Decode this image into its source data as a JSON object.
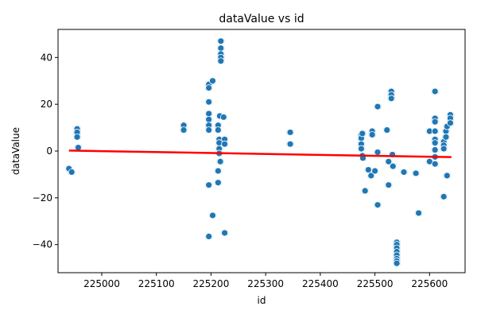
{
  "chart_data": {
    "type": "scatter",
    "title": "dataValue vs id",
    "xlabel": "id",
    "ylabel": "dataValue",
    "xlim": [
      224920,
      225665
    ],
    "ylim": [
      -52,
      52
    ],
    "xticks": [
      225000,
      225100,
      225200,
      225300,
      225400,
      225500,
      225600
    ],
    "xtick_labels": [
      "225000",
      "225100",
      "225200",
      "225300",
      "225400",
      "225500",
      "225600"
    ],
    "yticks": [
      -40,
      -20,
      0,
      20,
      40
    ],
    "ytick_labels": [
      "−40",
      "−20",
      "0",
      "20",
      "40"
    ],
    "grid": false,
    "colors": {
      "points": "#1f77b4",
      "trend": "#ff0000",
      "shadow": "#c6dbef"
    },
    "series": [
      {
        "values": [
          {
            "x": 224940,
            "y": -7.5
          },
          {
            "x": 224945,
            "y": -9
          },
          {
            "x": 224955,
            "y": 9.5
          },
          {
            "x": 224955,
            "y": 8
          },
          {
            "x": 224955,
            "y": 6
          },
          {
            "x": 224957,
            "y": 1.5
          },
          {
            "x": 225150,
            "y": 11
          },
          {
            "x": 225150,
            "y": 9
          },
          {
            "x": 225196,
            "y": 28.5
          },
          {
            "x": 225196,
            "y": 27
          },
          {
            "x": 225196,
            "y": 21
          },
          {
            "x": 225196,
            "y": 16
          },
          {
            "x": 225196,
            "y": 13.5
          },
          {
            "x": 225196,
            "y": 11
          },
          {
            "x": 225196,
            "y": 9
          },
          {
            "x": 225196,
            "y": -14.5
          },
          {
            "x": 225196,
            "y": -36.5
          },
          {
            "x": 225203,
            "y": 30
          },
          {
            "x": 225203,
            "y": -27.5
          },
          {
            "x": 225213,
            "y": 11
          },
          {
            "x": 225213,
            "y": 9
          },
          {
            "x": 225213,
            "y": -8.5
          },
          {
            "x": 225213,
            "y": -13.5
          },
          {
            "x": 225215,
            "y": 5
          },
          {
            "x": 225215,
            "y": 3.5
          },
          {
            "x": 225215,
            "y": 1
          },
          {
            "x": 225215,
            "y": -1
          },
          {
            "x": 225216,
            "y": 15
          },
          {
            "x": 225217,
            "y": -4.5
          },
          {
            "x": 225218,
            "y": 47
          },
          {
            "x": 225218,
            "y": 44
          },
          {
            "x": 225218,
            "y": 41.5
          },
          {
            "x": 225218,
            "y": 40
          },
          {
            "x": 225218,
            "y": 38.5
          },
          {
            "x": 225223,
            "y": 14.5
          },
          {
            "x": 225225,
            "y": 5
          },
          {
            "x": 225225,
            "y": 3
          },
          {
            "x": 225225,
            "y": -35
          },
          {
            "x": 225345,
            "y": 8
          },
          {
            "x": 225345,
            "y": 3
          },
          {
            "x": 225475,
            "y": 7
          },
          {
            "x": 225475,
            "y": 5.5
          },
          {
            "x": 225475,
            "y": 3
          },
          {
            "x": 225475,
            "y": 1
          },
          {
            "x": 225477,
            "y": 7.5
          },
          {
            "x": 225477,
            "y": -2
          },
          {
            "x": 225478,
            "y": -3
          },
          {
            "x": 225482,
            "y": -17
          },
          {
            "x": 225488,
            "y": -8
          },
          {
            "x": 225493,
            "y": -10.5
          },
          {
            "x": 225495,
            "y": 8.5
          },
          {
            "x": 225495,
            "y": 7
          },
          {
            "x": 225500,
            "y": -8.5
          },
          {
            "x": 225505,
            "y": 19
          },
          {
            "x": 225505,
            "y": -0.5
          },
          {
            "x": 225505,
            "y": -23
          },
          {
            "x": 225522,
            "y": 9
          },
          {
            "x": 225525,
            "y": -4.5
          },
          {
            "x": 225525,
            "y": -14.5
          },
          {
            "x": 225530,
            "y": 25.5
          },
          {
            "x": 225530,
            "y": 24
          },
          {
            "x": 225530,
            "y": 22.5
          },
          {
            "x": 225532,
            "y": -1.5
          },
          {
            "x": 225533,
            "y": -6.5
          },
          {
            "x": 225540,
            "y": -39
          },
          {
            "x": 225540,
            "y": -40
          },
          {
            "x": 225540,
            "y": -41.5
          },
          {
            "x": 225540,
            "y": -43
          },
          {
            "x": 225540,
            "y": -44.5
          },
          {
            "x": 225540,
            "y": -46
          },
          {
            "x": 225540,
            "y": -47
          },
          {
            "x": 225540,
            "y": -48
          },
          {
            "x": 225553,
            "y": -9
          },
          {
            "x": 225575,
            "y": -9.5
          },
          {
            "x": 225580,
            "y": -26.5
          },
          {
            "x": 225600,
            "y": 8.5
          },
          {
            "x": 225600,
            "y": -4.5
          },
          {
            "x": 225610,
            "y": 25.5
          },
          {
            "x": 225610,
            "y": 14
          },
          {
            "x": 225610,
            "y": 12.5
          },
          {
            "x": 225610,
            "y": 8.5
          },
          {
            "x": 225610,
            "y": 5
          },
          {
            "x": 225610,
            "y": 3.5
          },
          {
            "x": 225610,
            "y": 0.5
          },
          {
            "x": 225610,
            "y": -2.5
          },
          {
            "x": 225610,
            "y": -5.5
          },
          {
            "x": 225626,
            "y": 4
          },
          {
            "x": 225626,
            "y": 2.5
          },
          {
            "x": 225626,
            "y": 1
          },
          {
            "x": 225626,
            "y": -19.5
          },
          {
            "x": 225630,
            "y": 8.5
          },
          {
            "x": 225630,
            "y": 6
          },
          {
            "x": 225632,
            "y": 10.5
          },
          {
            "x": 225632,
            "y": -10.5
          },
          {
            "x": 225638,
            "y": 15.5
          },
          {
            "x": 225638,
            "y": 14
          },
          {
            "x": 225638,
            "y": 12
          }
        ]
      }
    ],
    "trend_line": {
      "x": [
        224940,
        225640
      ],
      "y": [
        0.2,
        -2.6
      ]
    }
  }
}
